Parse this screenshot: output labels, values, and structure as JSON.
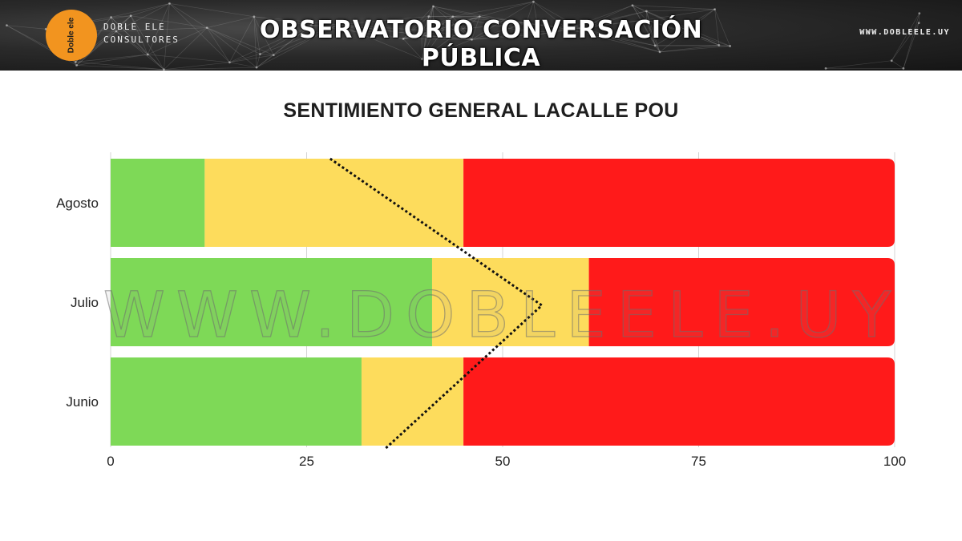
{
  "header": {
    "logo_text": "Doble ele",
    "brand_line1": "DOBLE ELE",
    "brand_line2": "CONSULTORES",
    "title": "OBSERVATORIO CONVERSACIÓN PÚBLICA",
    "url": "WWW.DOBLEELE.UY"
  },
  "watermark": "WWW.DOBLEELE.UY",
  "colors": {
    "positive": "#7ed957",
    "neutral": "#fddc5c",
    "negative": "#ff1a1a"
  },
  "chart_data": {
    "type": "bar",
    "orientation": "horizontal",
    "stacked": true,
    "title": "SENTIMIENTO GENERAL  LACALLE POU",
    "categories": [
      "Agosto",
      "Julio",
      "Junio"
    ],
    "series": [
      {
        "values": [
          12,
          41,
          32
        ],
        "color": "#7ed957"
      },
      {
        "values": [
          33,
          20,
          13
        ],
        "color": "#fddc5c"
      },
      {
        "values": [
          55,
          39,
          55
        ],
        "color": "#ff1a1a"
      }
    ],
    "xlim": [
      0,
      100
    ],
    "xticks": [
      "0",
      "25",
      "50",
      "75",
      "100"
    ],
    "grid": true,
    "legend": "none",
    "annotations": [
      {
        "type": "dotted-line",
        "points": [
          [
            28,
            "Agosto",
            "top"
          ],
          [
            55,
            "Julio",
            "center"
          ],
          [
            35,
            "Junio",
            "bottom"
          ]
        ]
      }
    ]
  }
}
